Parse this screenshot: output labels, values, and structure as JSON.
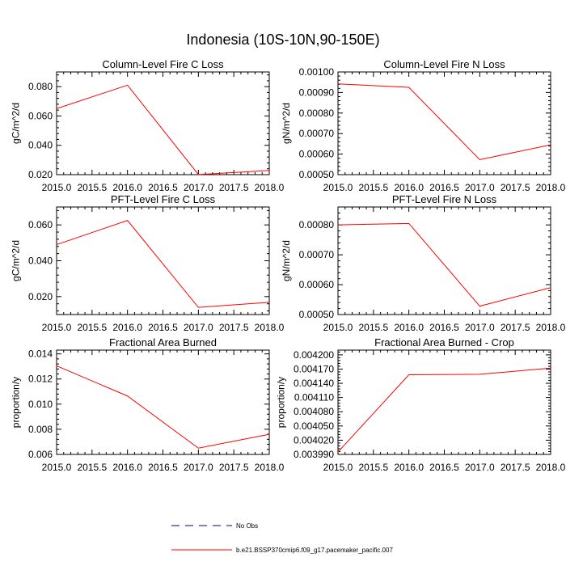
{
  "figure_title": "Indonesia (10S-10N,90-150E)",
  "colors": {
    "model": "#ff0000",
    "obs": "#000080",
    "axis": "#000000"
  },
  "legend": {
    "entries": [
      {
        "label": "No Obs",
        "style": "dashed",
        "color": "#000080"
      },
      {
        "label": "b.e21.BSSP370cmip6.f09_g17.pacemaker_pacific.007",
        "style": "solid",
        "color": "#ff0000"
      }
    ]
  },
  "chart_data": [
    {
      "type": "line",
      "title": "Column-Level Fire C Loss",
      "ylabel": "gC/m^2/d",
      "xlim": [
        2015.0,
        2018.0
      ],
      "ylim": [
        0.02,
        0.09
      ],
      "xticks": [
        "2015.0",
        "2015.5",
        "2016.0",
        "2016.5",
        "2017.0",
        "2017.5",
        "2018.0"
      ],
      "yticks": [
        "0.020",
        "0.040",
        "0.060",
        "0.080"
      ],
      "x": [
        2015,
        2016,
        2017,
        2018
      ],
      "series": [
        {
          "values": [
            0.065,
            0.081,
            0.0201,
            0.0228
          ]
        }
      ]
    },
    {
      "type": "line",
      "title": "Column-Level Fire N Loss",
      "ylabel": "gN/m^2/d",
      "xlim": [
        2015.0,
        2018.0
      ],
      "ylim": [
        0.0005,
        0.001
      ],
      "xticks": [
        "2015.0",
        "2015.5",
        "2016.0",
        "2016.5",
        "2017.0",
        "2017.5",
        "2018.0"
      ],
      "yticks": [
        "0.00050",
        "0.00060",
        "0.00070",
        "0.00080",
        "0.00090",
        "0.00100"
      ],
      "x": [
        2015,
        2016,
        2017,
        2018
      ],
      "series": [
        {
          "values": [
            0.000942,
            0.000925,
            0.000573,
            0.000645
          ]
        }
      ]
    },
    {
      "type": "line",
      "title": "PFT-Level Fire C Loss",
      "ylabel": "gC/m^2/d",
      "xlim": [
        2015.0,
        2018.0
      ],
      "ylim": [
        0.01,
        0.07
      ],
      "xticks": [
        "2015.0",
        "2015.5",
        "2016.0",
        "2016.5",
        "2017.0",
        "2017.5",
        "2018.0"
      ],
      "yticks": [
        "0.020",
        "0.040",
        "0.060"
      ],
      "x": [
        2015,
        2016,
        2017,
        2018
      ],
      "series": [
        {
          "values": [
            0.049,
            0.0625,
            0.014,
            0.0168
          ]
        }
      ]
    },
    {
      "type": "line",
      "title": "PFT-Level Fire N Loss",
      "ylabel": "gN/m^2/d",
      "xlim": [
        2015.0,
        2018.0
      ],
      "ylim": [
        0.0005,
        0.00086
      ],
      "xticks": [
        "2015.0",
        "2015.5",
        "2016.0",
        "2016.5",
        "2017.0",
        "2017.5",
        "2018.0"
      ],
      "yticks": [
        "0.00050",
        "0.00060",
        "0.00070",
        "0.00080"
      ],
      "x": [
        2015,
        2016,
        2017,
        2018
      ],
      "series": [
        {
          "values": [
            0.0008,
            0.000805,
            0.000528,
            0.00059
          ]
        }
      ]
    },
    {
      "type": "line",
      "title": "Fractional Area Burned",
      "ylabel": "proportion/y",
      "xlim": [
        2015.0,
        2018.0
      ],
      "ylim": [
        0.006,
        0.0143
      ],
      "xticks": [
        "2015.0",
        "2015.5",
        "2016.0",
        "2016.5",
        "2017.0",
        "2017.5",
        "2018.0"
      ],
      "yticks": [
        "0.006",
        "0.008",
        "0.010",
        "0.012",
        "0.014"
      ],
      "x": [
        2015,
        2016,
        2017,
        2018
      ],
      "series": [
        {
          "values": [
            0.01305,
            0.01065,
            0.0065,
            0.0076
          ]
        }
      ]
    },
    {
      "type": "line",
      "title": "Fractional Area Burned - Crop",
      "ylabel": "proportion/y",
      "xlim": [
        2015.0,
        2018.0
      ],
      "ylim": [
        0.00399,
        0.00421
      ],
      "xticks": [
        "2015.0",
        "2015.5",
        "2016.0",
        "2016.5",
        "2017.0",
        "2017.5",
        "2018.0"
      ],
      "yticks": [
        "0.003990",
        "0.004020",
        "0.004050",
        "0.004080",
        "0.004110",
        "0.004140",
        "0.004170",
        "0.004200"
      ],
      "x": [
        2015,
        2016,
        2017,
        2018
      ],
      "series": [
        {
          "values": [
            0.003995,
            0.004158,
            0.004159,
            0.004172
          ]
        }
      ]
    }
  ]
}
